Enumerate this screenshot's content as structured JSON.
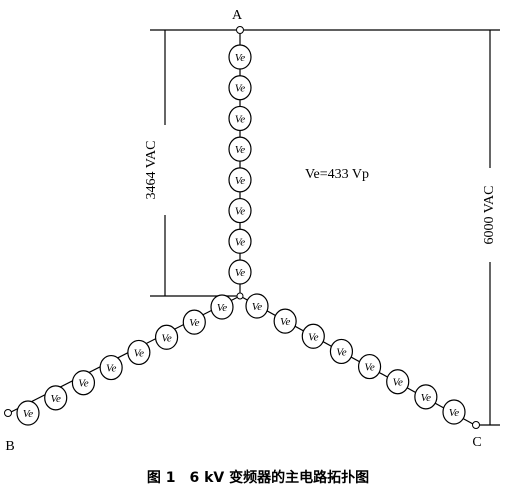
{
  "nodes": [
    {
      "label": "A"
    },
    {
      "label": "B"
    },
    {
      "label": "C"
    }
  ],
  "module_voltage": "Ve=433  Vp",
  "dimensions": [
    {
      "label": "3464  VAC"
    },
    {
      "label": "6000  VAC"
    }
  ],
  "arms": [
    {
      "modules": [
        "Ve",
        "Ve",
        "Ve",
        "Ve",
        "Ve",
        "Ve",
        "Ve",
        "Ve"
      ]
    },
    {
      "modules": [
        "Ve",
        "Ve",
        "Ve",
        "Ve",
        "Ve",
        "Ve",
        "Ve",
        "Ve"
      ]
    },
    {
      "modules": [
        "Ve",
        "Ve",
        "Ve",
        "Ve",
        "Ve",
        "Ve",
        "Ve",
        "Ve"
      ]
    }
  ],
  "caption": "图 1　6 kV 变频器的主电路拓扑图"
}
